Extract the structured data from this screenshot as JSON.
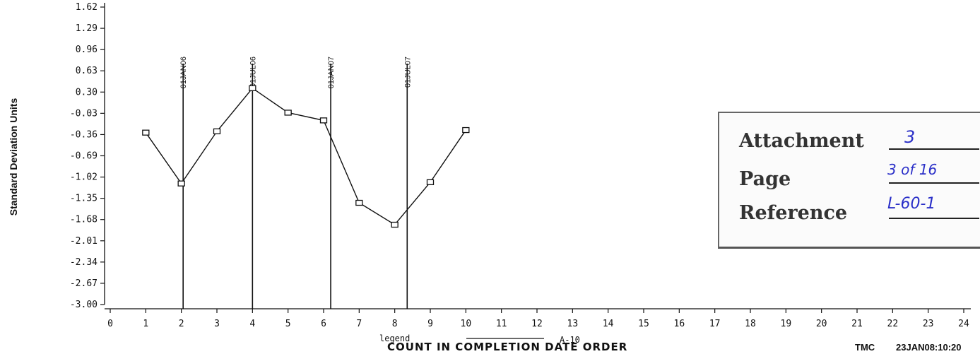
{
  "chart_data": {
    "type": "line",
    "ylabel": "Standard Deviation Units",
    "xlabel": "COUNT IN COMPLETION DATE ORDER",
    "y_ticks": [
      "1.62",
      "1.29",
      "0.96",
      "0.63",
      "0.30",
      "-0.03",
      "-0.36",
      "-0.69",
      "-1.02",
      "-1.35",
      "-1.68",
      "-2.01",
      "-2.34",
      "-2.67",
      "-3.00"
    ],
    "x_ticks": [
      "0",
      "1",
      "2",
      "3",
      "4",
      "5",
      "6",
      "7",
      "8",
      "9",
      "10",
      "11",
      "12",
      "13",
      "14",
      "15",
      "16",
      "17",
      "18",
      "19",
      "20",
      "21",
      "22",
      "23",
      "24"
    ],
    "ylim": [
      -3.0,
      1.62
    ],
    "xlim": [
      0,
      24
    ],
    "series": [
      {
        "x": [
          1,
          2,
          3,
          4,
          5,
          6,
          7,
          8,
          9,
          10
        ],
        "y": [
          -0.33,
          -1.12,
          -0.31,
          0.36,
          -0.02,
          -0.14,
          -1.42,
          -1.76,
          -1.1,
          -0.29
        ]
      }
    ],
    "reference_lines": [
      {
        "x": 2.05,
        "label": "01JAN06"
      },
      {
        "x": 4.0,
        "label": "01JUL06"
      },
      {
        "x": 6.2,
        "label": "01JAN07"
      },
      {
        "x": 8.35,
        "label": "01JUL07"
      }
    ],
    "legend": {
      "prefix": "legend",
      "series_label": "A-10"
    },
    "marker": "square",
    "grid": false
  },
  "footer": {
    "left": "TMC",
    "right": "23JAN08:10:20"
  },
  "stamp": {
    "attachment_label": "Attachment",
    "attachment_value": "3",
    "page_label": "Page",
    "page_value": "3 of 16",
    "reference_label": "Reference",
    "reference_value": "L-60-1"
  }
}
